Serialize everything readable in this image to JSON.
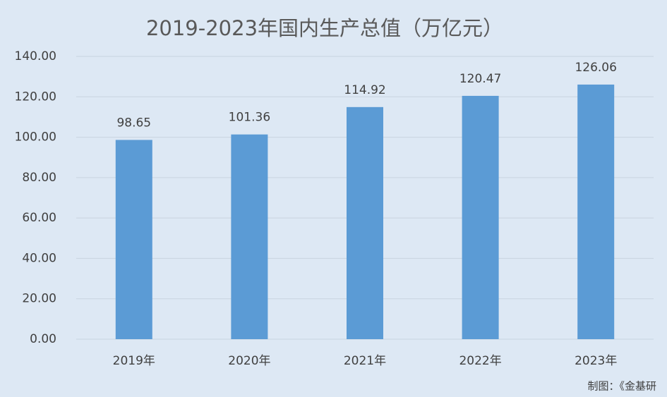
{
  "chart_data": {
    "type": "bar",
    "title": "2019-2023年国内生产总值（万亿元）",
    "categories": [
      "2019年",
      "2020年",
      "2021年",
      "2022年",
      "2023年"
    ],
    "values": [
      98.65,
      101.36,
      114.92,
      120.47,
      126.06
    ],
    "color": "#5b9bd5",
    "ylim": [
      0,
      140
    ],
    "yticks": [
      {
        "value": 0,
        "label": "0.00"
      },
      {
        "value": 20,
        "label": "20.00"
      },
      {
        "value": 40,
        "label": "40.00"
      },
      {
        "value": 60,
        "label": "60.00"
      },
      {
        "value": 80,
        "label": "80.00"
      },
      {
        "value": 100,
        "label": "100.00"
      },
      {
        "value": 120,
        "label": "120.00"
      },
      {
        "value": 140,
        "label": "140.00"
      }
    ],
    "grid": true,
    "note": "制图：《金基研"
  }
}
